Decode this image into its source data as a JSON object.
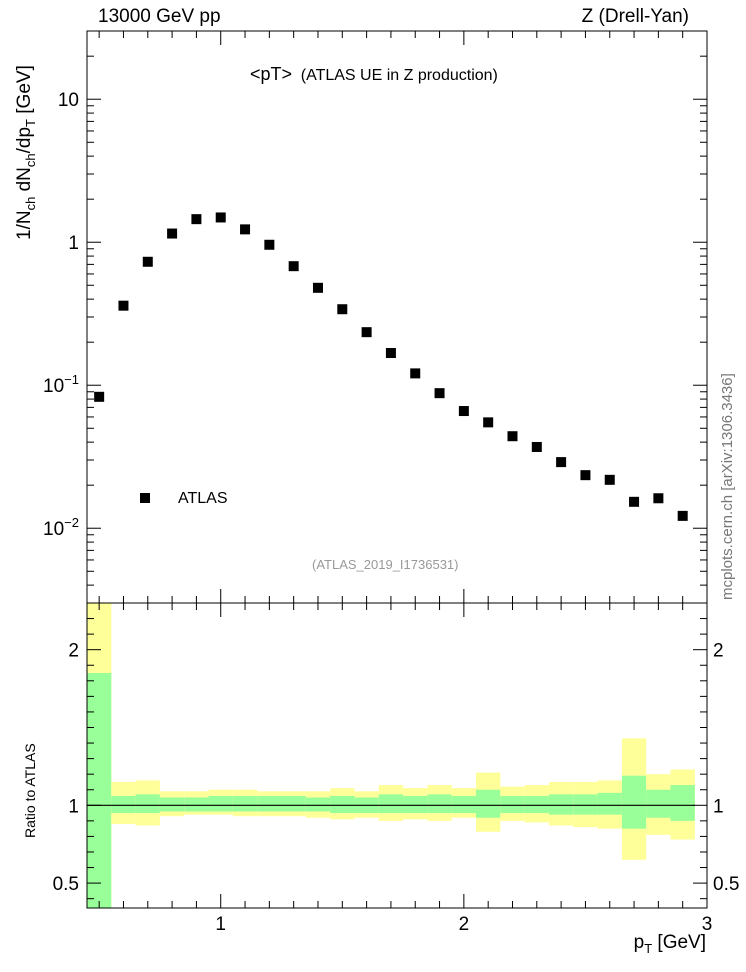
{
  "header": {
    "left": "13000 GeV pp",
    "right": "Z (Drell-Yan)"
  },
  "plot": {
    "title_main": "<pT>",
    "title_sub": "(ATLAS UE in Z production)",
    "analysis_id": "(ATLAS_2019_I1736531)",
    "side_credit": "mcplots.cern.ch [arXiv:1306.3436]"
  },
  "chart_data": [
    {
      "type": "scatter",
      "ylabel": "1/N_ch dN_ch/dp_T [GeV]",
      "yscale": "log",
      "ylim": [
        0.003,
        30
      ],
      "xlim": [
        0.45,
        3.0
      ],
      "y_ticks": [
        "10^-2",
        "10^-1",
        "1",
        "10"
      ],
      "legend": {
        "placement": "bottom-left",
        "entries": [
          "ATLAS"
        ]
      },
      "series": [
        {
          "name": "ATLAS",
          "marker": "square",
          "color": "#000000",
          "x": [
            0.5,
            0.6,
            0.7,
            0.8,
            0.9,
            1.0,
            1.1,
            1.2,
            1.3,
            1.4,
            1.5,
            1.6,
            1.7,
            1.8,
            1.9,
            2.0,
            2.1,
            2.2,
            2.3,
            2.4,
            2.5,
            2.6,
            2.7,
            2.8,
            2.9
          ],
          "y": [
            0.083,
            0.36,
            0.73,
            1.15,
            1.45,
            1.49,
            1.23,
            0.96,
            0.68,
            0.48,
            0.34,
            0.235,
            0.168,
            0.121,
            0.088,
            0.066,
            0.055,
            0.044,
            0.037,
            0.029,
            0.0235,
            0.0218,
            0.0153,
            0.0162,
            0.0122
          ]
        }
      ]
    },
    {
      "type": "area",
      "ylabel": "Ratio to ATLAS",
      "xlabel": "p_T [GeV]",
      "xlim": [
        0.45,
        3.0
      ],
      "ylim": [
        0.34,
        2.3
      ],
      "x_ticks": [
        "1",
        "2",
        "3"
      ],
      "y_ticks": [
        "0.5",
        "1",
        "2"
      ],
      "reference_line": 1,
      "colors": {
        "outer_band": "#ffff99",
        "inner_band": "#99ff99",
        "line": "#000000"
      },
      "bins": {
        "edges": [
          0.45,
          0.55,
          0.65,
          0.75,
          0.85,
          0.95,
          1.05,
          1.15,
          1.25,
          1.35,
          1.45,
          1.55,
          1.65,
          1.75,
          1.85,
          1.95,
          2.05,
          2.15,
          2.25,
          2.35,
          2.45,
          2.55,
          2.65,
          2.75,
          2.85,
          2.95
        ],
        "outer_lo": [
          0.34,
          0.88,
          0.87,
          0.93,
          0.94,
          0.94,
          0.93,
          0.93,
          0.93,
          0.92,
          0.91,
          0.92,
          0.9,
          0.91,
          0.9,
          0.92,
          0.83,
          0.9,
          0.89,
          0.87,
          0.86,
          0.85,
          0.65,
          0.81,
          0.78
        ],
        "outer_hi": [
          2.3,
          1.15,
          1.16,
          1.09,
          1.09,
          1.1,
          1.1,
          1.09,
          1.09,
          1.09,
          1.11,
          1.09,
          1.13,
          1.11,
          1.13,
          1.11,
          1.21,
          1.12,
          1.13,
          1.15,
          1.15,
          1.16,
          1.43,
          1.2,
          1.23
        ],
        "inner_lo": [
          0.34,
          0.95,
          0.95,
          0.96,
          0.96,
          0.96,
          0.96,
          0.96,
          0.96,
          0.96,
          0.95,
          0.95,
          0.95,
          0.95,
          0.95,
          0.95,
          0.92,
          0.95,
          0.95,
          0.94,
          0.94,
          0.94,
          0.85,
          0.92,
          0.9
        ],
        "inner_hi": [
          1.85,
          1.06,
          1.07,
          1.05,
          1.05,
          1.06,
          1.06,
          1.06,
          1.06,
          1.05,
          1.06,
          1.05,
          1.07,
          1.06,
          1.07,
          1.06,
          1.1,
          1.06,
          1.06,
          1.07,
          1.07,
          1.08,
          1.19,
          1.1,
          1.13
        ]
      }
    }
  ]
}
